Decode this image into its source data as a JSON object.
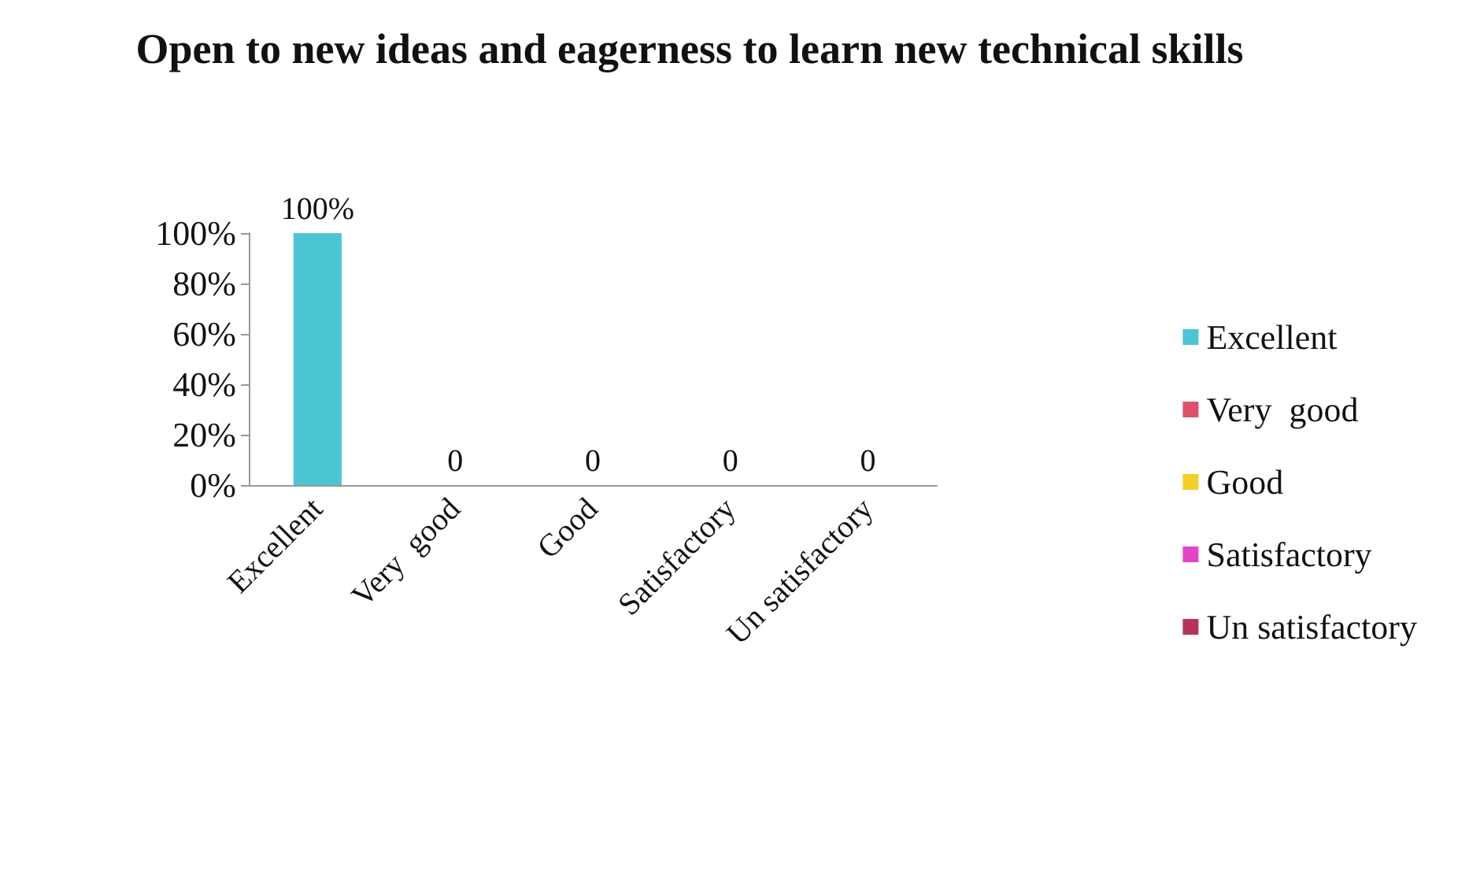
{
  "chart_data": {
    "type": "bar",
    "title": "Open to new ideas and eagerness to learn new technical skills",
    "categories": [
      "Excellent",
      "Very  good",
      "Good",
      "Satisfactory",
      "Un satisfactory"
    ],
    "stacked": true,
    "series": [
      {
        "name": "Excellent",
        "color": "#4cc6d4",
        "values": [
          100,
          null,
          null,
          null,
          null
        ],
        "value_labels": [
          "100%",
          null,
          null,
          null,
          null
        ]
      },
      {
        "name": "Very  good",
        "color": "#e0506a",
        "values": [
          null,
          0,
          null,
          null,
          null
        ],
        "value_labels": [
          null,
          "0",
          null,
          null,
          null
        ]
      },
      {
        "name": "Good",
        "color": "#f2d027",
        "values": [
          null,
          null,
          0,
          null,
          null
        ],
        "value_labels": [
          null,
          null,
          "0",
          null,
          null
        ]
      },
      {
        "name": "Satisfactory",
        "color": "#e445c4",
        "values": [
          null,
          null,
          null,
          0,
          null
        ],
        "value_labels": [
          null,
          null,
          null,
          "0",
          null
        ]
      },
      {
        "name": "Un satisfactory",
        "color": "#b4345a",
        "values": [
          null,
          null,
          null,
          null,
          0
        ],
        "value_labels": [
          null,
          null,
          null,
          null,
          "0"
        ]
      }
    ],
    "ylim": [
      0,
      100
    ],
    "yticks": [
      {
        "value": 0,
        "label": "0%"
      },
      {
        "value": 20,
        "label": "20%"
      },
      {
        "value": 40,
        "label": "40%"
      },
      {
        "value": 60,
        "label": "60%"
      },
      {
        "value": 80,
        "label": "80%"
      },
      {
        "value": 100,
        "label": "100%"
      }
    ],
    "grid": false,
    "legend": "right"
  }
}
